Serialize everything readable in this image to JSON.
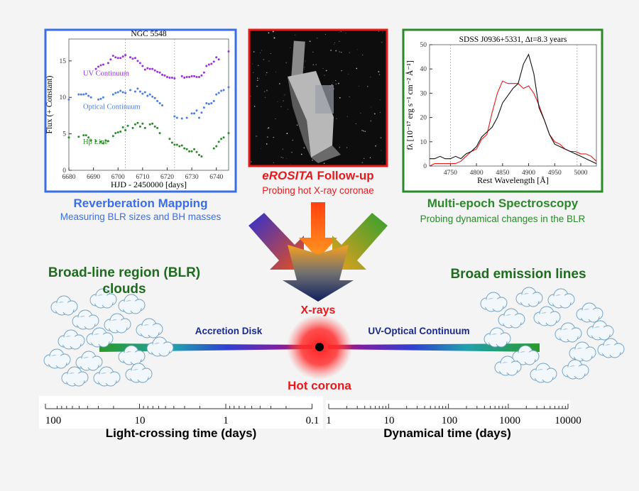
{
  "colors": {
    "blue": "#3a6ee8",
    "red": "#e8191c",
    "green": "#2a8a2a",
    "dark_green": "#1f6b1f",
    "navy": "#1a2a8a"
  },
  "left_panel": {
    "title": "Reverberation Mapping",
    "subtitle": "Measuring BLR sizes and BH masses"
  },
  "middle_panel": {
    "title_italic": "eROSITA",
    "title_rest": " Follow-up",
    "subtitle": "Probing hot X-ray coronae"
  },
  "right_panel": {
    "title": "Multi-epoch Spectroscopy",
    "subtitle": "Probing dynamical changes in the BLR"
  },
  "diagram": {
    "blr_line1": "Broad-line region (BLR)",
    "blr_line2": "clouds",
    "broad_lines": "Broad emission lines",
    "xrays": "X-rays",
    "accretion_disk": "Accretion Disk",
    "uv_optical": "UV-Optical Continuum",
    "hot_corona": "Hot corona"
  },
  "axes": {
    "left": {
      "label": "Light-crossing time (days)",
      "ticks": [
        "100",
        "10",
        "1",
        "0.1"
      ],
      "scale": "log"
    },
    "right": {
      "label": "Dynamical time (days)",
      "ticks": [
        "1",
        "10",
        "100",
        "1000",
        "10000"
      ],
      "scale": "log"
    }
  },
  "chart_data": [
    {
      "type": "scatter",
      "title": "NGC 5548",
      "xlabel": "HJD - 2450000 [days]",
      "ylabel": "Flux (+ Constant)",
      "xlim": [
        6680,
        6745
      ],
      "ylim": [
        0,
        18
      ],
      "xticks": [
        "6680",
        "6690",
        "6700",
        "6710",
        "6720",
        "6730",
        "6740"
      ],
      "yticks": [
        "0",
        "5",
        "10",
        "15"
      ],
      "vlines": [
        6703,
        6723
      ],
      "series": [
        {
          "name": "UV Continuum",
          "color": "#9b30e0",
          "points": [
            [
              6691,
              13.9
            ],
            [
              6692,
              14.2
            ],
            [
              6693,
              14.4
            ],
            [
              6694,
              14.5
            ],
            [
              6696,
              14.7
            ],
            [
              6697,
              15.2
            ],
            [
              6698,
              15.7
            ],
            [
              6699,
              15.5
            ],
            [
              6700,
              15.4
            ],
            [
              6701,
              15.4
            ],
            [
              6702,
              15.6
            ],
            [
              6703,
              15.8
            ],
            [
              6705,
              15.5
            ],
            [
              6706,
              15.3
            ],
            [
              6707,
              15.4
            ],
            [
              6708,
              15.0
            ],
            [
              6709,
              14.7
            ],
            [
              6710,
              14.3
            ],
            [
              6711,
              13.8
            ],
            [
              6712,
              14.0
            ],
            [
              6713,
              13.9
            ],
            [
              6714,
              13.9
            ],
            [
              6715,
              13.7
            ],
            [
              6716,
              13.5
            ],
            [
              6717,
              13.4
            ],
            [
              6718,
              13.1
            ],
            [
              6719,
              13.0
            ],
            [
              6720,
              12.8
            ],
            [
              6721,
              12.7
            ],
            [
              6722,
              12.7
            ],
            [
              6723,
              12.6
            ],
            [
              6726,
              12.9
            ],
            [
              6727,
              12.7
            ],
            [
              6728,
              12.8
            ],
            [
              6729,
              12.8
            ],
            [
              6730,
              12.9
            ],
            [
              6731,
              12.9
            ],
            [
              6732,
              12.8
            ],
            [
              6733,
              12.8
            ],
            [
              6734,
              13.0
            ],
            [
              6735,
              13.4
            ],
            [
              6736,
              14.3
            ],
            [
              6737,
              14.5
            ],
            [
              6738,
              14.6
            ],
            [
              6739,
              14.9
            ],
            [
              6740,
              15.5
            ],
            [
              6741,
              15.2
            ],
            [
              6745,
              16.3
            ]
          ]
        },
        {
          "name": "Optical Continuum",
          "color": "#4a7fe0",
          "points": [
            [
              6680,
              9.7
            ],
            [
              6684,
              10.4
            ],
            [
              6685,
              10.4
            ],
            [
              6686,
              10.4
            ],
            [
              6687,
              10.5
            ],
            [
              6688,
              10.2
            ],
            [
              6689,
              10.0
            ],
            [
              6692,
              9.7
            ],
            [
              6693,
              9.8
            ],
            [
              6694,
              10.0
            ],
            [
              6698,
              10.4
            ],
            [
              6699,
              10.6
            ],
            [
              6700,
              10.7
            ],
            [
              6701,
              10.9
            ],
            [
              6702,
              10.7
            ],
            [
              6703,
              10.6
            ],
            [
              6705,
              11.0
            ],
            [
              6707,
              10.8
            ],
            [
              6708,
              11.2
            ],
            [
              6709,
              10.8
            ],
            [
              6710,
              10.5
            ],
            [
              6711,
              10.7
            ],
            [
              6712,
              10.2
            ],
            [
              6713,
              10.4
            ],
            [
              6714,
              10.1
            ],
            [
              6715,
              9.9
            ],
            [
              6716,
              9.5
            ],
            [
              6717,
              9.2
            ],
            [
              6718,
              8.9
            ],
            [
              6723,
              7.4
            ],
            [
              6724,
              7.2
            ],
            [
              6726,
              7.1
            ],
            [
              6728,
              7.2
            ],
            [
              6730,
              7.8
            ],
            [
              6731,
              7.8
            ],
            [
              6732,
              8.2
            ],
            [
              6733,
              7.2
            ],
            [
              6734,
              7.9
            ],
            [
              6735,
              8.6
            ],
            [
              6736,
              9.2
            ],
            [
              6737,
              9.1
            ],
            [
              6738,
              9.2
            ],
            [
              6739,
              9.5
            ],
            [
              6740,
              10.4
            ],
            [
              6741,
              10.6
            ],
            [
              6742,
              10.9
            ],
            [
              6743,
              11.0
            ],
            [
              6745,
              11.4
            ]
          ]
        },
        {
          "name": "Hβ Line",
          "color": "#2a8a2a",
          "points": [
            [
              6680,
              4.5
            ],
            [
              6684,
              4.6
            ],
            [
              6686,
              4.8
            ],
            [
              6687,
              4.8
            ],
            [
              6688,
              4.5
            ],
            [
              6689,
              4.1
            ],
            [
              6691,
              4.0
            ],
            [
              6693,
              3.9
            ],
            [
              6694,
              3.7
            ],
            [
              6695,
              4.1
            ],
            [
              6696,
              4.0
            ],
            [
              6698,
              4.7
            ],
            [
              6699,
              5.1
            ],
            [
              6700,
              5.2
            ],
            [
              6701,
              5.3
            ],
            [
              6702,
              5.9
            ],
            [
              6703,
              5.5
            ],
            [
              6704,
              6.1
            ],
            [
              6706,
              5.8
            ],
            [
              6707,
              6.3
            ],
            [
              6708,
              6.5
            ],
            [
              6709,
              6.0
            ],
            [
              6710,
              6.4
            ],
            [
              6711,
              5.8
            ],
            [
              6713,
              6.3
            ],
            [
              6714,
              6.4
            ],
            [
              6715,
              6.0
            ],
            [
              6716,
              5.8
            ],
            [
              6717,
              5.1
            ],
            [
              6721,
              4.3
            ],
            [
              6722,
              3.8
            ],
            [
              6723,
              3.5
            ],
            [
              6724,
              3.5
            ],
            [
              6725,
              3.3
            ],
            [
              6726,
              3.4
            ],
            [
              6727,
              3.0
            ],
            [
              6728,
              2.9
            ],
            [
              6729,
              2.6
            ],
            [
              6730,
              2.6
            ],
            [
              6731,
              2.9
            ],
            [
              6732,
              2.5
            ],
            [
              6733,
              2.1
            ],
            [
              6734,
              1.9
            ],
            [
              6739,
              3.0
            ],
            [
              6740,
              3.3
            ],
            [
              6741,
              3.9
            ],
            [
              6742,
              4.3
            ],
            [
              6743,
              4.5
            ],
            [
              6745,
              5.1
            ]
          ]
        }
      ]
    },
    {
      "type": "line",
      "title": "SDSS J0936+5331, Δt=8.3 years",
      "xlabel": "Rest Wavelength [Å]",
      "ylabel": "fλ [10⁻¹⁷ erg s⁻¹ cm⁻² Å⁻¹]",
      "xlim": [
        4710,
        5030
      ],
      "ylim": [
        0,
        50
      ],
      "xticks": [
        "4750",
        "4800",
        "4850",
        "4900",
        "4950",
        "5000"
      ],
      "yticks": [
        "0",
        "10",
        "20",
        "30",
        "40",
        "50"
      ],
      "vlines": [
        4750,
        4993
      ],
      "x": [
        4710,
        4720,
        4730,
        4740,
        4750,
        4760,
        4770,
        4780,
        4790,
        4800,
        4810,
        4820,
        4830,
        4840,
        4850,
        4860,
        4870,
        4880,
        4890,
        4900,
        4910,
        4920,
        4930,
        4940,
        4950,
        4960,
        4970,
        4980,
        4990,
        5000,
        5010,
        5020,
        5030
      ],
      "series": [
        {
          "color": "#111111",
          "values": [
            3,
            3,
            4,
            3,
            3,
            4,
            3,
            5,
            6,
            8,
            12,
            14,
            16,
            20,
            26,
            29,
            32,
            34,
            42,
            46,
            38,
            24,
            19,
            13,
            9,
            8,
            7,
            6,
            5,
            4,
            3,
            2,
            1
          ]
        },
        {
          "color": "#e8191c",
          "values": [
            0,
            1,
            1,
            1,
            1,
            1,
            2,
            4,
            6,
            7,
            11,
            13,
            22,
            30,
            35,
            34,
            34,
            34,
            32,
            33,
            30,
            25,
            19,
            13,
            10,
            9,
            7,
            6,
            6,
            5,
            5,
            4,
            2
          ]
        }
      ]
    }
  ]
}
